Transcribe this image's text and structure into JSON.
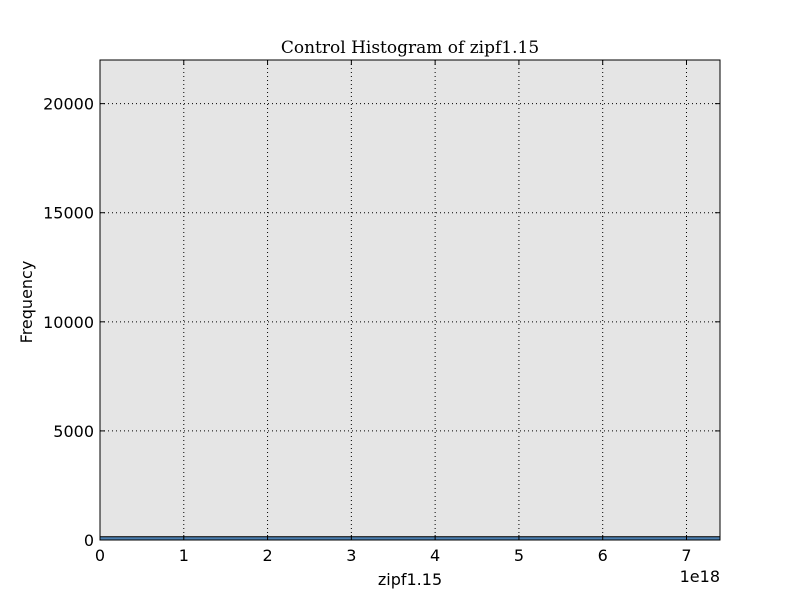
{
  "chart_data": {
    "type": "bar",
    "title": "Control Histogram of zipf1.15",
    "xlabel": "zipf1.15",
    "ylabel": "Frequency",
    "x_offset_label": "1e18",
    "xlim": [
      0,
      7.4
    ],
    "ylim": [
      0,
      22000
    ],
    "x_ticks": [
      0,
      1,
      2,
      3,
      4,
      5,
      6,
      7
    ],
    "x_tick_labels": [
      "0",
      "1",
      "2",
      "3",
      "4",
      "5",
      "6",
      "7"
    ],
    "y_ticks": [
      0,
      5000,
      10000,
      15000,
      20000
    ],
    "y_tick_labels": [
      "0",
      "5000",
      "10000",
      "15000",
      "20000"
    ],
    "grid": true,
    "bar_color": "#4c7fb0",
    "plot_bg": "#e5e5e5",
    "bins": [
      {
        "x0": 0,
        "x1": 7.4,
        "value": 150
      }
    ]
  }
}
